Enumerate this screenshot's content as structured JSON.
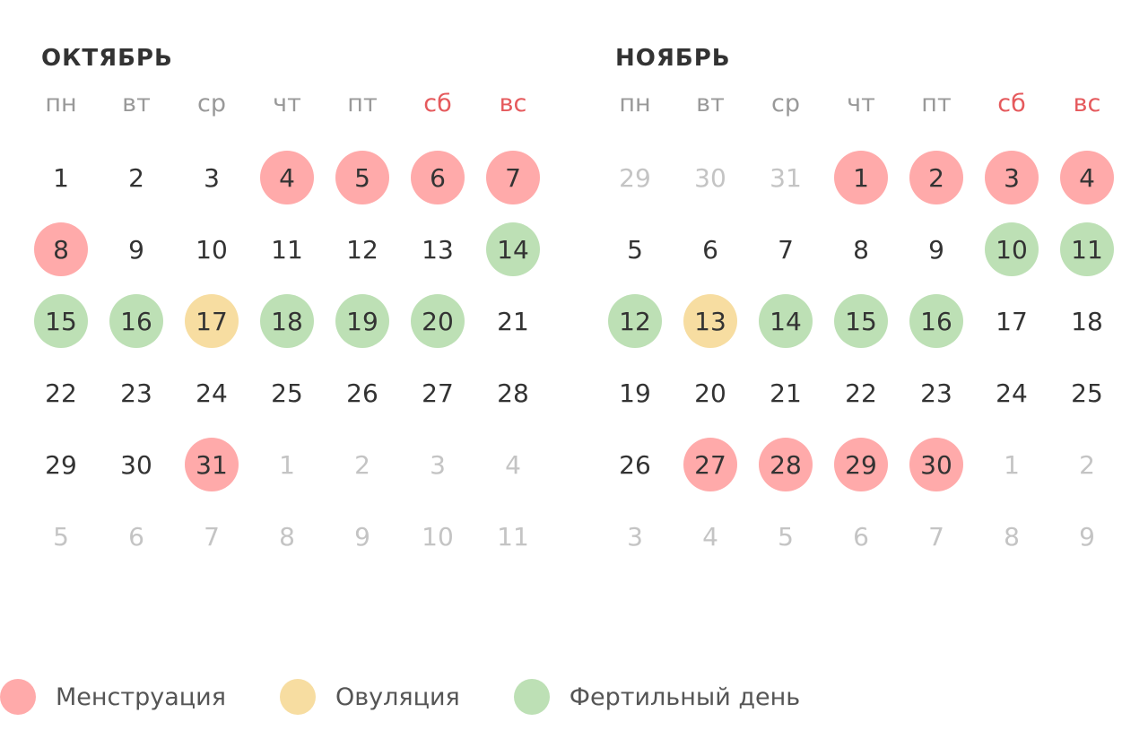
{
  "colors": {
    "menstruation": "#ffaaaa",
    "ovulation": "#f7dda1",
    "fertile": "#bde0b5",
    "weekend": "#e5595c",
    "muted": "#c4c4c4"
  },
  "weekdays": [
    "пн",
    "вт",
    "ср",
    "чт",
    "пт",
    "сб",
    "вс"
  ],
  "weekend_indexes": [
    5,
    6
  ],
  "months": [
    {
      "title": "ОКТЯБРЬ",
      "days": [
        {
          "n": "1"
        },
        {
          "n": "2"
        },
        {
          "n": "3"
        },
        {
          "n": "4",
          "t": "menstruation"
        },
        {
          "n": "5",
          "t": "menstruation"
        },
        {
          "n": "6",
          "t": "menstruation"
        },
        {
          "n": "7",
          "t": "menstruation"
        },
        {
          "n": "8",
          "t": "menstruation"
        },
        {
          "n": "9"
        },
        {
          "n": "10"
        },
        {
          "n": "11"
        },
        {
          "n": "12"
        },
        {
          "n": "13"
        },
        {
          "n": "14",
          "t": "fertile"
        },
        {
          "n": "15",
          "t": "fertile"
        },
        {
          "n": "16",
          "t": "fertile"
        },
        {
          "n": "17",
          "t": "ovulation"
        },
        {
          "n": "18",
          "t": "fertile"
        },
        {
          "n": "19",
          "t": "fertile"
        },
        {
          "n": "20",
          "t": "fertile"
        },
        {
          "n": "21"
        },
        {
          "n": "22"
        },
        {
          "n": "23"
        },
        {
          "n": "24"
        },
        {
          "n": "25"
        },
        {
          "n": "26"
        },
        {
          "n": "27"
        },
        {
          "n": "28"
        },
        {
          "n": "29"
        },
        {
          "n": "30"
        },
        {
          "n": "31",
          "t": "menstruation"
        },
        {
          "n": "1",
          "other": true
        },
        {
          "n": "2",
          "other": true
        },
        {
          "n": "3",
          "other": true
        },
        {
          "n": "4",
          "other": true
        },
        {
          "n": "5",
          "other": true
        },
        {
          "n": "6",
          "other": true
        },
        {
          "n": "7",
          "other": true
        },
        {
          "n": "8",
          "other": true
        },
        {
          "n": "9",
          "other": true
        },
        {
          "n": "10",
          "other": true
        },
        {
          "n": "11",
          "other": true
        }
      ]
    },
    {
      "title": "НОЯБРЬ",
      "days": [
        {
          "n": "29",
          "other": true
        },
        {
          "n": "30",
          "other": true
        },
        {
          "n": "31",
          "other": true
        },
        {
          "n": "1",
          "t": "menstruation"
        },
        {
          "n": "2",
          "t": "menstruation"
        },
        {
          "n": "3",
          "t": "menstruation"
        },
        {
          "n": "4",
          "t": "menstruation"
        },
        {
          "n": "5"
        },
        {
          "n": "6"
        },
        {
          "n": "7"
        },
        {
          "n": "8"
        },
        {
          "n": "9"
        },
        {
          "n": "10",
          "t": "fertile"
        },
        {
          "n": "11",
          "t": "fertile"
        },
        {
          "n": "12",
          "t": "fertile"
        },
        {
          "n": "13",
          "t": "ovulation"
        },
        {
          "n": "14",
          "t": "fertile"
        },
        {
          "n": "15",
          "t": "fertile"
        },
        {
          "n": "16",
          "t": "fertile"
        },
        {
          "n": "17"
        },
        {
          "n": "18"
        },
        {
          "n": "19"
        },
        {
          "n": "20"
        },
        {
          "n": "21"
        },
        {
          "n": "22"
        },
        {
          "n": "23"
        },
        {
          "n": "24"
        },
        {
          "n": "25"
        },
        {
          "n": "26"
        },
        {
          "n": "27",
          "t": "menstruation"
        },
        {
          "n": "28",
          "t": "menstruation"
        },
        {
          "n": "29",
          "t": "menstruation"
        },
        {
          "n": "30",
          "t": "menstruation"
        },
        {
          "n": "1",
          "other": true
        },
        {
          "n": "2",
          "other": true
        },
        {
          "n": "3",
          "other": true
        },
        {
          "n": "4",
          "other": true
        },
        {
          "n": "5",
          "other": true
        },
        {
          "n": "6",
          "other": true
        },
        {
          "n": "7",
          "other": true
        },
        {
          "n": "8",
          "other": true
        },
        {
          "n": "9",
          "other": true
        }
      ]
    }
  ],
  "legend": [
    {
      "key": "menstruation",
      "label": "Менструация"
    },
    {
      "key": "ovulation",
      "label": "Овуляция"
    },
    {
      "key": "fertile",
      "label": "Фертильный день"
    }
  ]
}
